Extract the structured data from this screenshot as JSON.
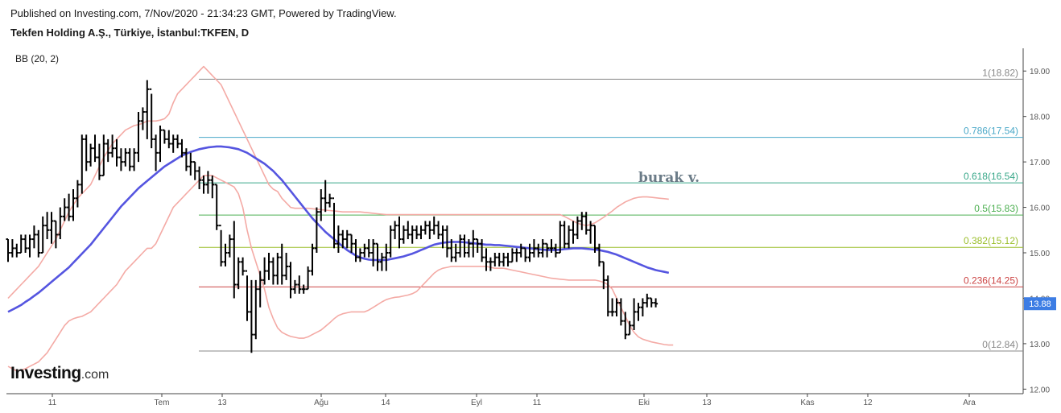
{
  "header": {
    "published": "Published on Investing.com, 7/Nov/2020 - 21:34:23 GMT, Powered by TradingView.",
    "title": "Tekfen Holding A.Ş., Türkiye, İstanbul:TKFEN, D",
    "indicator": "BB (20, 2)"
  },
  "watermark": "burak v.",
  "logo": {
    "brand": "Investing",
    "suffix": ".com"
  },
  "price_badge": "13.88",
  "colors": {
    "bb_middle": "#5555e0",
    "bb_band": "#f4aaa5",
    "candle": "#000000",
    "price_badge": "#3d7de4",
    "axis_text": "#555555"
  },
  "chart_data": {
    "type": "ohlc",
    "symbol": "TKFEN",
    "interval": "D",
    "ylim": [
      11.9,
      19.5
    ],
    "y_ticks": [
      "12.00",
      "13.00",
      "14.00",
      "15.00",
      "16.00",
      "17.00",
      "18.00",
      "19.00"
    ],
    "x_ticks": [
      "11",
      "Tem",
      "13",
      "Ağu",
      "14",
      "Eyl",
      "11",
      "Eki",
      "13",
      "Kas",
      "12",
      "Ara"
    ],
    "last_price": 13.88,
    "fibonacci": [
      {
        "label": "1(18.82)",
        "ratio": 1,
        "value": 18.82,
        "color": "#888888"
      },
      {
        "label": "0.786(17.54)",
        "ratio": 0.786,
        "value": 17.54,
        "color": "#4aa8c8"
      },
      {
        "label": "0.618(16.54)",
        "ratio": 0.618,
        "value": 16.54,
        "color": "#3aa88a"
      },
      {
        "label": "0.5(15.83)",
        "ratio": 0.5,
        "value": 15.83,
        "color": "#4caf50"
      },
      {
        "label": "0.382(15.12)",
        "ratio": 0.382,
        "value": 15.12,
        "color": "#9bbf2c"
      },
      {
        "label": "0.236(14.25)",
        "ratio": 0.236,
        "value": 14.25,
        "color": "#cc4444"
      },
      {
        "label": "0(12.84)",
        "ratio": 0,
        "value": 12.84,
        "color": "#888888"
      }
    ],
    "bars": [
      [
        15.3,
        15.3,
        14.8,
        15.0
      ],
      [
        15.0,
        15.3,
        14.9,
        15.1
      ],
      [
        15.1,
        15.2,
        14.9,
        15.0
      ],
      [
        15.0,
        15.4,
        15.0,
        15.3
      ],
      [
        15.3,
        15.4,
        15.0,
        15.1
      ],
      [
        15.1,
        15.4,
        14.9,
        15.3
      ],
      [
        15.3,
        15.6,
        15.1,
        15.4
      ],
      [
        15.4,
        15.5,
        14.9,
        15.0
      ],
      [
        15.0,
        15.8,
        15.0,
        15.6
      ],
      [
        15.6,
        15.9,
        15.3,
        15.5
      ],
      [
        15.5,
        15.9,
        15.2,
        15.7
      ],
      [
        15.7,
        15.7,
        15.1,
        15.4
      ],
      [
        15.4,
        16.0,
        15.3,
        15.8
      ],
      [
        15.8,
        16.2,
        15.7,
        16.0
      ],
      [
        16.0,
        16.3,
        15.7,
        15.8
      ],
      [
        15.8,
        16.4,
        15.7,
        16.2
      ],
      [
        16.2,
        16.6,
        16.0,
        16.5
      ],
      [
        16.5,
        17.6,
        16.3,
        17.5
      ],
      [
        17.5,
        17.6,
        16.8,
        17.0
      ],
      [
        17.0,
        17.4,
        16.9,
        17.3
      ],
      [
        17.3,
        17.6,
        17.0,
        17.1
      ],
      [
        17.1,
        17.4,
        16.6,
        16.7
      ],
      [
        16.7,
        17.6,
        16.7,
        17.4
      ],
      [
        17.4,
        17.5,
        17.0,
        17.2
      ],
      [
        17.2,
        17.6,
        17.1,
        17.3
      ],
      [
        17.3,
        17.5,
        16.9,
        17.1
      ],
      [
        17.1,
        17.3,
        16.8,
        17.0
      ],
      [
        17.0,
        17.3,
        16.9,
        17.2
      ],
      [
        17.2,
        17.3,
        16.8,
        16.9
      ],
      [
        16.9,
        17.3,
        16.8,
        17.2
      ],
      [
        17.2,
        18.1,
        17.0,
        17.9
      ],
      [
        17.9,
        18.2,
        17.7,
        18.1
      ],
      [
        18.1,
        18.8,
        17.5,
        18.6
      ],
      [
        18.6,
        18.5,
        17.3,
        17.5
      ],
      [
        17.5,
        17.6,
        16.8,
        17.2
      ],
      [
        17.2,
        17.8,
        17.0,
        17.7
      ],
      [
        17.7,
        17.7,
        17.4,
        17.5
      ],
      [
        17.5,
        17.7,
        17.3,
        17.4
      ],
      [
        17.4,
        17.6,
        17.2,
        17.5
      ],
      [
        17.5,
        17.6,
        17.3,
        17.4
      ],
      [
        17.4,
        17.5,
        17.1,
        17.2
      ],
      [
        17.2,
        17.3,
        16.8,
        16.9
      ],
      [
        16.9,
        17.2,
        16.7,
        17.0
      ],
      [
        17.0,
        17.0,
        16.6,
        16.8
      ],
      [
        16.8,
        16.9,
        16.4,
        16.6
      ],
      [
        16.6,
        16.7,
        16.3,
        16.5
      ],
      [
        16.5,
        16.8,
        16.3,
        16.6
      ],
      [
        16.6,
        16.7,
        16.2,
        16.5
      ],
      [
        16.5,
        16.5,
        15.5,
        15.6
      ],
      [
        15.6,
        15.5,
        14.7,
        14.8
      ],
      [
        14.8,
        15.2,
        14.7,
        15.0
      ],
      [
        15.0,
        15.4,
        14.9,
        15.3
      ],
      [
        15.3,
        15.7,
        14.0,
        14.3
      ],
      [
        14.3,
        14.9,
        14.2,
        14.8
      ],
      [
        14.8,
        14.9,
        14.5,
        14.6
      ],
      [
        14.6,
        14.5,
        13.5,
        13.7
      ],
      [
        13.7,
        14.4,
        12.8,
        13.2
      ],
      [
        13.2,
        14.4,
        13.1,
        14.2
      ],
      [
        14.2,
        14.6,
        13.8,
        14.4
      ],
      [
        14.4,
        14.9,
        14.3,
        14.6
      ],
      [
        14.6,
        15.0,
        14.4,
        14.8
      ],
      [
        14.8,
        14.9,
        14.3,
        14.5
      ],
      [
        14.5,
        15.0,
        14.3,
        14.9
      ],
      [
        14.9,
        15.2,
        14.3,
        14.5
      ],
      [
        14.5,
        15.0,
        14.4,
        14.7
      ],
      [
        14.7,
        14.8,
        14.0,
        14.2
      ],
      [
        14.2,
        14.4,
        14.1,
        14.3
      ],
      [
        14.3,
        14.5,
        14.1,
        14.2
      ],
      [
        14.2,
        14.3,
        14.1,
        14.2
      ],
      [
        14.2,
        14.7,
        14.2,
        14.6
      ],
      [
        14.6,
        15.2,
        14.5,
        15.1
      ],
      [
        15.1,
        16.0,
        15.0,
        15.9
      ],
      [
        15.9,
        16.4,
        15.7,
        16.2
      ],
      [
        16.2,
        16.6,
        15.9,
        16.1
      ],
      [
        16.1,
        16.3,
        16.0,
        16.2
      ],
      [
        16.2,
        16.1,
        15.1,
        15.2
      ],
      [
        15.2,
        15.6,
        15.0,
        15.4
      ],
      [
        15.4,
        15.5,
        15.1,
        15.3
      ],
      [
        15.3,
        15.5,
        15.1,
        15.4
      ],
      [
        15.4,
        15.4,
        15.0,
        15.2
      ],
      [
        15.2,
        15.3,
        14.8,
        14.9
      ],
      [
        14.9,
        15.1,
        14.8,
        15.0
      ],
      [
        15.0,
        15.2,
        14.9,
        15.1
      ],
      [
        15.1,
        15.3,
        14.9,
        15.0
      ],
      [
        15.0,
        15.3,
        14.7,
        15.2
      ],
      [
        15.2,
        15.2,
        14.6,
        14.8
      ],
      [
        14.8,
        15.0,
        14.6,
        14.9
      ],
      [
        14.9,
        15.2,
        14.6,
        15.0
      ],
      [
        15.0,
        15.6,
        14.9,
        15.5
      ],
      [
        15.5,
        15.7,
        15.3,
        15.6
      ],
      [
        15.6,
        15.8,
        15.1,
        15.3
      ],
      [
        15.3,
        15.6,
        15.2,
        15.5
      ],
      [
        15.5,
        15.7,
        15.3,
        15.4
      ],
      [
        15.4,
        15.6,
        15.2,
        15.5
      ],
      [
        15.5,
        15.6,
        15.3,
        15.4
      ],
      [
        15.4,
        15.6,
        15.3,
        15.5
      ],
      [
        15.5,
        15.7,
        15.4,
        15.6
      ],
      [
        15.6,
        15.7,
        15.3,
        15.5
      ],
      [
        15.5,
        15.8,
        15.4,
        15.6
      ],
      [
        15.6,
        15.7,
        15.3,
        15.4
      ],
      [
        15.4,
        15.6,
        15.1,
        15.5
      ],
      [
        15.5,
        15.6,
        14.9,
        15.1
      ],
      [
        15.1,
        15.3,
        14.8,
        14.9
      ],
      [
        14.9,
        15.2,
        14.8,
        15.0
      ],
      [
        15.0,
        15.4,
        14.9,
        15.3
      ],
      [
        15.3,
        15.4,
        14.9,
        15.0
      ],
      [
        15.0,
        15.3,
        14.9,
        15.2
      ],
      [
        15.2,
        15.5,
        14.9,
        15.3
      ],
      [
        15.3,
        15.3,
        15.0,
        15.2
      ],
      [
        15.2,
        15.3,
        14.8,
        14.9
      ],
      [
        14.9,
        15.1,
        14.6,
        14.8
      ],
      [
        14.8,
        14.9,
        14.6,
        14.8
      ],
      [
        14.8,
        15.0,
        14.7,
        14.9
      ],
      [
        14.9,
        15.0,
        14.7,
        14.8
      ],
      [
        14.8,
        15.0,
        14.7,
        14.9
      ],
      [
        14.9,
        15.0,
        14.7,
        14.8
      ],
      [
        14.8,
        15.1,
        14.8,
        15.0
      ],
      [
        15.0,
        15.1,
        14.8,
        15.0
      ],
      [
        15.0,
        15.2,
        14.9,
        15.1
      ],
      [
        15.1,
        15.1,
        14.8,
        14.9
      ],
      [
        14.9,
        15.2,
        14.8,
        15.0
      ],
      [
        15.0,
        15.3,
        14.9,
        15.1
      ],
      [
        15.1,
        15.2,
        14.9,
        15.0
      ],
      [
        15.0,
        15.3,
        14.9,
        15.2
      ],
      [
        15.2,
        15.2,
        14.9,
        15.1
      ],
      [
        15.1,
        15.3,
        15.0,
        15.1
      ],
      [
        15.1,
        15.2,
        14.9,
        15.0
      ],
      [
        15.0,
        15.7,
        15.0,
        15.6
      ],
      [
        15.6,
        15.7,
        15.1,
        15.2
      ],
      [
        15.2,
        15.6,
        15.1,
        15.5
      ],
      [
        15.5,
        15.7,
        15.2,
        15.4
      ],
      [
        15.4,
        15.8,
        15.3,
        15.7
      ],
      [
        15.7,
        15.9,
        15.5,
        15.8
      ],
      [
        15.8,
        15.9,
        15.4,
        15.5
      ],
      [
        15.5,
        15.7,
        15.2,
        15.6
      ],
      [
        15.6,
        15.6,
        15.0,
        15.1
      ],
      [
        15.1,
        15.2,
        14.7,
        14.8
      ],
      [
        14.8,
        14.8,
        14.2,
        14.4
      ],
      [
        14.4,
        14.5,
        13.6,
        13.7
      ],
      [
        13.7,
        14.0,
        13.6,
        13.7
      ],
      [
        13.7,
        14.0,
        13.6,
        13.9
      ],
      [
        13.9,
        14.0,
        13.4,
        13.5
      ],
      [
        13.5,
        13.7,
        13.1,
        13.2
      ],
      [
        13.2,
        13.5,
        13.2,
        13.4
      ],
      [
        13.4,
        14.0,
        13.3,
        13.7
      ],
      [
        13.7,
        13.9,
        13.5,
        13.8
      ],
      [
        13.8,
        14.0,
        13.6,
        13.9
      ],
      [
        13.9,
        14.1,
        13.8,
        14.0
      ],
      [
        14.0,
        14.0,
        13.8,
        13.9
      ],
      [
        13.9,
        14.0,
        13.8,
        13.88
      ]
    ],
    "bb_middle": [
      13.7,
      13.75,
      13.8,
      13.85,
      13.92,
      13.98,
      14.05,
      14.12,
      14.2,
      14.28,
      14.36,
      14.44,
      14.52,
      14.6,
      14.68,
      14.78,
      14.88,
      14.98,
      15.08,
      15.18,
      15.3,
      15.42,
      15.54,
      15.66,
      15.78,
      15.9,
      16.02,
      16.12,
      16.22,
      16.32,
      16.42,
      16.5,
      16.58,
      16.66,
      16.74,
      16.82,
      16.9,
      16.96,
      17.02,
      17.08,
      17.14,
      17.18,
      17.22,
      17.25,
      17.28,
      17.3,
      17.32,
      17.33,
      17.34,
      17.34,
      17.33,
      17.32,
      17.3,
      17.28,
      17.24,
      17.2,
      17.14,
      17.08,
      17.02,
      16.96,
      16.88,
      16.8,
      16.7,
      16.6,
      16.48,
      16.36,
      16.24,
      16.12,
      16.0,
      15.88,
      15.76,
      15.66,
      15.56,
      15.46,
      15.38,
      15.3,
      15.22,
      15.14,
      15.06,
      15.0,
      14.94,
      14.9,
      14.87,
      14.85,
      14.84,
      14.84,
      14.84,
      14.84,
      14.86,
      14.88,
      14.9,
      14.92,
      14.95,
      14.98,
      15.02,
      15.06,
      15.1,
      15.14,
      15.18,
      15.2,
      15.22,
      15.23,
      15.24,
      15.24,
      15.24,
      15.23,
      15.22,
      15.21,
      15.2,
      15.19,
      15.18,
      15.18,
      15.17,
      15.17,
      15.16,
      15.15,
      15.14,
      15.13,
      15.12,
      15.11,
      15.1,
      15.09,
      15.08,
      15.07,
      15.06,
      15.06,
      15.06,
      15.07,
      15.08,
      15.09,
      15.1,
      15.1,
      15.1,
      15.09,
      15.08,
      15.07,
      15.06,
      15.04,
      15.02,
      14.99,
      14.96,
      14.92,
      14.88,
      14.84,
      14.8,
      14.76,
      14.72,
      14.68,
      14.65,
      14.62,
      14.6,
      14.58,
      14.56
    ],
    "bb_upper": [
      14.0,
      14.1,
      14.2,
      14.3,
      14.4,
      14.5,
      14.6,
      14.7,
      14.85,
      15.0,
      15.15,
      15.3,
      15.5,
      15.7,
      15.9,
      16.05,
      16.2,
      16.3,
      16.4,
      16.5,
      16.7,
      16.9,
      17.1,
      17.25,
      17.4,
      17.5,
      17.6,
      17.7,
      17.75,
      17.8,
      17.82,
      17.85,
      17.9,
      17.9,
      17.9,
      17.92,
      17.95,
      18.05,
      18.3,
      18.5,
      18.6,
      18.7,
      18.8,
      18.9,
      19.0,
      19.1,
      19.0,
      18.9,
      18.8,
      18.7,
      18.5,
      18.3,
      18.1,
      17.9,
      17.7,
      17.5,
      17.3,
      17.1,
      16.9,
      16.7,
      16.5,
      16.4,
      16.35,
      16.2,
      16.1,
      16.0,
      15.98,
      15.98,
      15.98,
      15.98,
      15.97,
      15.96,
      15.95,
      15.94,
      15.93,
      15.92,
      15.91,
      15.9,
      15.9,
      15.9,
      15.9,
      15.9,
      15.89,
      15.88,
      15.87,
      15.86,
      15.85,
      15.84,
      15.84,
      15.84,
      15.84,
      15.84,
      15.84,
      15.84,
      15.84,
      15.84,
      15.84,
      15.84,
      15.84,
      15.84,
      15.84,
      15.84,
      15.84,
      15.84,
      15.84,
      15.84,
      15.84,
      15.84,
      15.84,
      15.84,
      15.84,
      15.84,
      15.84,
      15.84,
      15.84,
      15.84,
      15.84,
      15.84,
      15.84,
      15.84,
      15.84,
      15.84,
      15.84,
      15.84,
      15.84,
      15.84,
      15.84,
      15.84,
      15.8,
      15.75,
      15.7,
      15.65,
      15.62,
      15.6,
      15.62,
      15.66,
      15.72,
      15.78,
      15.85,
      15.92,
      16.0,
      16.06,
      16.12,
      16.16,
      16.2,
      16.22,
      16.23,
      16.23,
      16.22,
      16.21,
      16.2,
      16.19,
      16.18
    ],
    "bb_lower": [
      12.5,
      12.45,
      12.4,
      12.42,
      12.45,
      12.5,
      12.55,
      12.6,
      12.7,
      12.8,
      12.95,
      13.1,
      13.25,
      13.4,
      13.5,
      13.55,
      13.58,
      13.6,
      13.65,
      13.7,
      13.8,
      13.9,
      14.0,
      14.1,
      14.2,
      14.3,
      14.45,
      14.6,
      14.7,
      14.8,
      14.9,
      15.0,
      15.1,
      15.1,
      15.2,
      15.4,
      15.6,
      15.8,
      16.0,
      16.1,
      16.2,
      16.3,
      16.4,
      16.5,
      16.6,
      16.7,
      16.7,
      16.7,
      16.65,
      16.6,
      16.55,
      16.5,
      16.45,
      16.3,
      16.0,
      15.5,
      15.1,
      14.8,
      14.5,
      14.2,
      13.8,
      13.55,
      13.35,
      13.25,
      13.2,
      13.16,
      13.14,
      13.12,
      13.12,
      13.15,
      13.2,
      13.25,
      13.3,
      13.38,
      13.46,
      13.55,
      13.62,
      13.66,
      13.68,
      13.7,
      13.7,
      13.7,
      13.7,
      13.74,
      13.8,
      13.86,
      13.92,
      13.97,
      14.0,
      14.02,
      14.03,
      14.05,
      14.07,
      14.1,
      14.15,
      14.25,
      14.35,
      14.45,
      14.55,
      14.62,
      14.66,
      14.68,
      14.7,
      14.7,
      14.7,
      14.7,
      14.7,
      14.7,
      14.7,
      14.7,
      14.7,
      14.68,
      14.66,
      14.66,
      14.66,
      14.64,
      14.62,
      14.6,
      14.58,
      14.56,
      14.54,
      14.52,
      14.5,
      14.48,
      14.46,
      14.44,
      14.43,
      14.42,
      14.41,
      14.4,
      14.4,
      14.4,
      14.4,
      14.4,
      14.4,
      14.4,
      14.38,
      14.35,
      14.3,
      14.2,
      14.0,
      13.8,
      13.6,
      13.4,
      13.25,
      13.15,
      13.1,
      13.07,
      13.04,
      13.02,
      13.0,
      12.98,
      12.97,
      12.97
    ]
  }
}
